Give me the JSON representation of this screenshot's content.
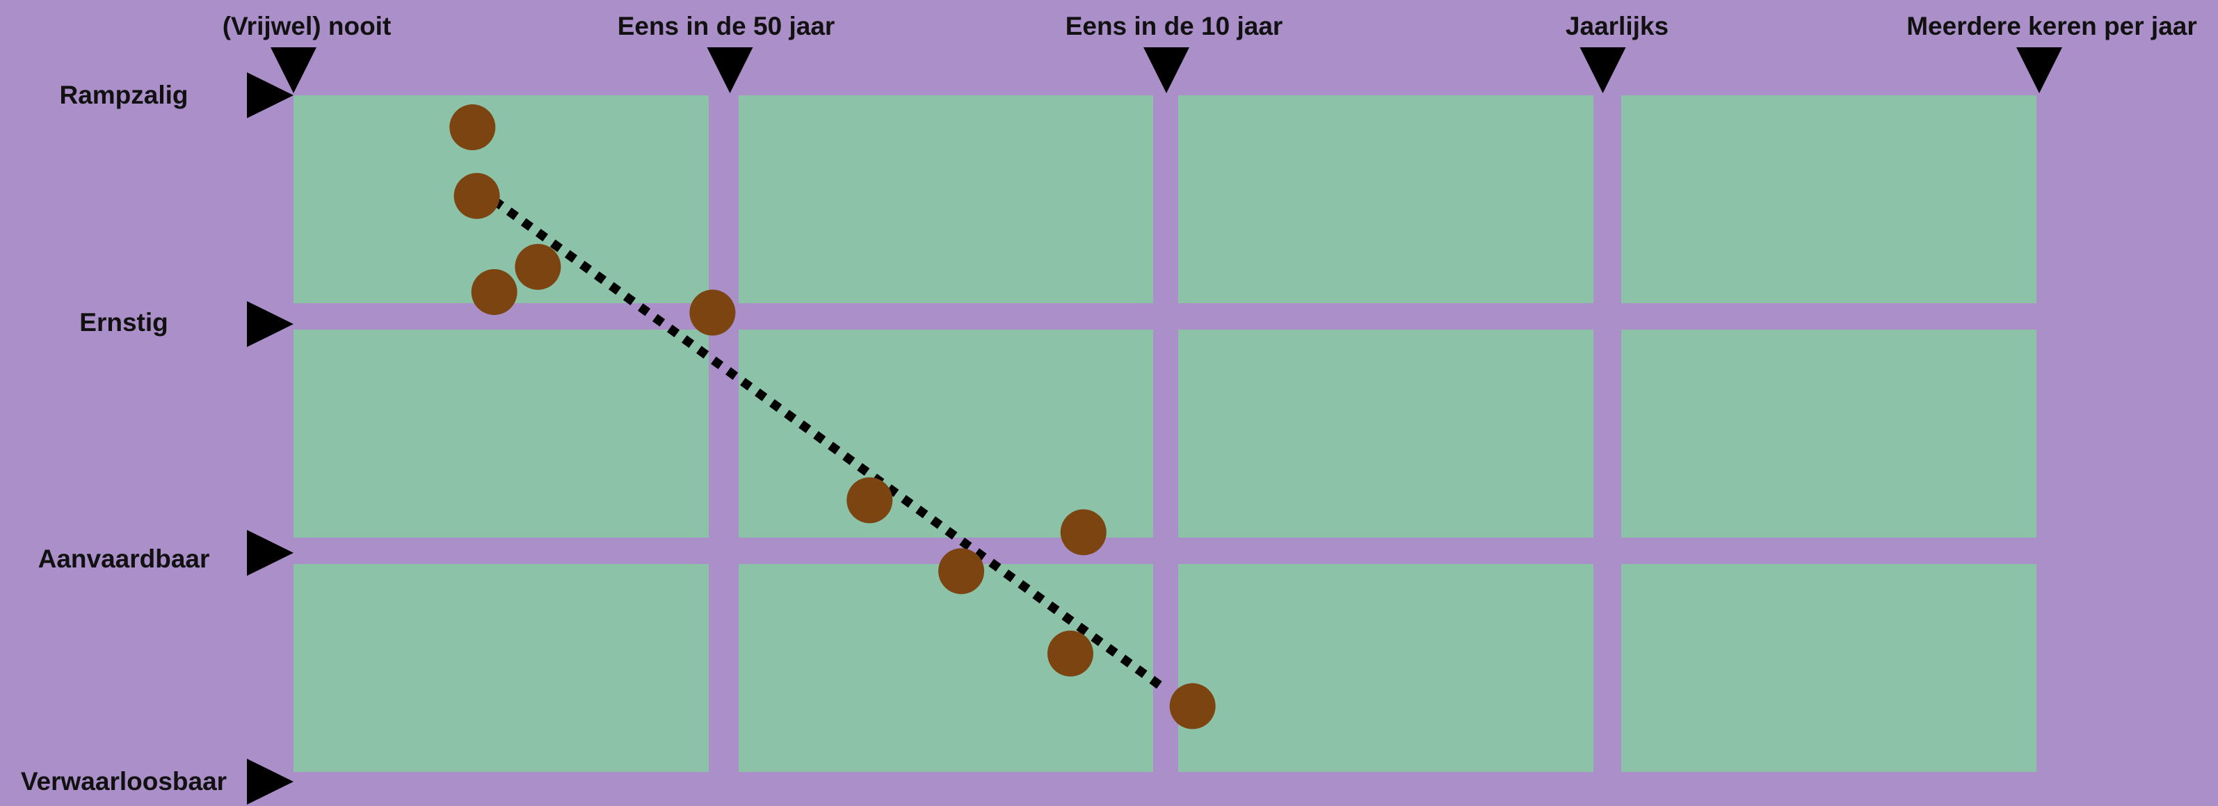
{
  "colors": {
    "background": "#AA8FC8",
    "cell": "#8CC3A8",
    "point": "#7B4411",
    "marker": "#000000",
    "trendline": "#000000"
  },
  "chart_data": {
    "type": "scatter",
    "title": "",
    "x_ticks": [
      "(Vrijwel) nooit",
      "Eens in de 50 jaar",
      "Eens in de 10 jaar",
      "Jaarlijks",
      "Meerdere keren per jaar"
    ],
    "y_ticks": [
      "Rampzalig",
      "Ernstig",
      "Aanvaardbaar",
      "Verwaarloosbaar"
    ],
    "x_range": [
      0,
      4
    ],
    "y_range": [
      0,
      3
    ],
    "grid": "4x3 cells",
    "points": [
      {
        "x": 0.41,
        "y": 0.14
      },
      {
        "x": 0.42,
        "y": 0.44
      },
      {
        "x": 0.56,
        "y": 0.75
      },
      {
        "x": 0.46,
        "y": 0.86
      },
      {
        "x": 0.96,
        "y": 0.95
      },
      {
        "x": 1.32,
        "y": 1.77
      },
      {
        "x": 1.81,
        "y": 1.91
      },
      {
        "x": 1.53,
        "y": 2.08
      },
      {
        "x": 1.78,
        "y": 2.44
      },
      {
        "x": 2.06,
        "y": 2.67
      }
    ],
    "trendline": {
      "x1": 0.46,
      "y1": 0.46,
      "x2": 2.0,
      "y2": 2.6
    }
  }
}
